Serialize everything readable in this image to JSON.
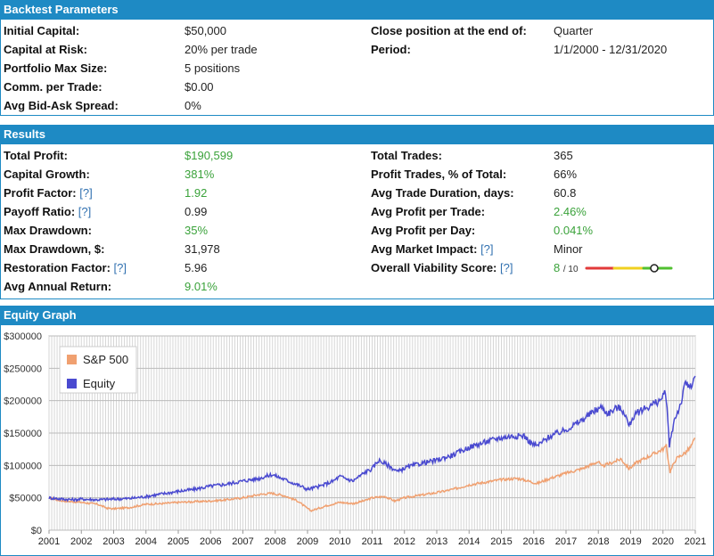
{
  "params": {
    "title": "Backtest Parameters",
    "left": [
      {
        "label": "Initial Capital:",
        "value": "$50,000"
      },
      {
        "label": "Capital at Risk:",
        "value": "20% per trade"
      },
      {
        "label": "Portfolio Max Size:",
        "value": "5 positions"
      },
      {
        "label": "Comm. per Trade:",
        "value": "$0.00"
      },
      {
        "label": "Avg Bid-Ask Spread:",
        "value": "0%"
      }
    ],
    "right": [
      {
        "label": "Close position at the end of:",
        "value": "Quarter"
      },
      {
        "label": "Period:",
        "value": "1/1/2000 - 12/31/2020"
      }
    ]
  },
  "results": {
    "title": "Results",
    "hint_text": "[?]",
    "left": [
      {
        "label": "Total Profit:",
        "value": "$190,599",
        "green": true,
        "hint": false
      },
      {
        "label": "Capital Growth:",
        "value": "381%",
        "green": true,
        "hint": false
      },
      {
        "label": "Profit Factor:",
        "value": "1.92",
        "green": true,
        "hint": true
      },
      {
        "label": "Payoff Ratio:",
        "value": "0.99",
        "green": false,
        "hint": true
      },
      {
        "label": "Max Drawdown:",
        "value": "35%",
        "green": true,
        "hint": false
      },
      {
        "label": "Max Drawdown, $:",
        "value": "31,978",
        "green": false,
        "hint": false
      },
      {
        "label": "Restoration Factor:",
        "value": "5.96",
        "green": false,
        "hint": true
      },
      {
        "label": "Avg Annual Return:",
        "value": "9.01%",
        "green": true,
        "hint": false
      }
    ],
    "right": [
      {
        "label": "Total Trades:",
        "value": "365",
        "green": false,
        "hint": false
      },
      {
        "label": "Profit Trades, % of Total:",
        "value": "66%",
        "green": false,
        "hint": false
      },
      {
        "label": "Avg Trade Duration, days:",
        "value": "60.8",
        "green": false,
        "hint": false
      },
      {
        "label": "Avg Profit per Trade:",
        "value": "2.46%",
        "green": true,
        "hint": false
      },
      {
        "label": "Avg Profit per Day:",
        "value": "0.041%",
        "green": true,
        "hint": false
      },
      {
        "label": "Avg Market Impact:",
        "value": "Minor",
        "green": false,
        "hint": true
      }
    ],
    "viability": {
      "label": "Overall Viability Score:",
      "score": "8",
      "outof": "/ 10",
      "level": 0.8
    }
  },
  "equity": {
    "title": "Equity Graph"
  },
  "colors": {
    "header_blue": "#1e8ac4",
    "green_text": "#3aa23a",
    "equity_line": "#4a4ad0",
    "sp500_line": "#f0a070"
  },
  "chart_data": {
    "type": "line",
    "title": "",
    "xlabel": "",
    "ylabel": "",
    "ylim": [
      0,
      300000
    ],
    "xlim": [
      2001,
      2021
    ],
    "yticks": [
      "$0",
      "$50000",
      "$100000",
      "$150000",
      "$200000",
      "$250000",
      "$300000"
    ],
    "xticks": [
      "2001",
      "2002",
      "2003",
      "2004",
      "2005",
      "2006",
      "2007",
      "2008",
      "2009",
      "2010",
      "2011",
      "2012",
      "2013",
      "2014",
      "2015",
      "2016",
      "2017",
      "2018",
      "2019",
      "2020",
      "2021"
    ],
    "legend": "top-left",
    "series": [
      {
        "name": "S&P 500",
        "color": "#f0a070",
        "points": [
          [
            2001,
            50000
          ],
          [
            2001.3,
            46000
          ],
          [
            2001.7,
            44000
          ],
          [
            2002,
            43000
          ],
          [
            2002.5,
            40000
          ],
          [
            2002.8,
            34000
          ],
          [
            2003,
            33000
          ],
          [
            2003.5,
            35000
          ],
          [
            2004,
            40000
          ],
          [
            2004.5,
            41000
          ],
          [
            2005,
            43000
          ],
          [
            2005.5,
            44000
          ],
          [
            2006,
            45000
          ],
          [
            2006.5,
            47000
          ],
          [
            2007,
            50000
          ],
          [
            2007.5,
            55000
          ],
          [
            2007.9,
            57000
          ],
          [
            2008.3,
            53000
          ],
          [
            2008.7,
            45000
          ],
          [
            2008.9,
            37000
          ],
          [
            2009.1,
            30000
          ],
          [
            2009.3,
            33000
          ],
          [
            2009.6,
            38000
          ],
          [
            2010,
            43000
          ],
          [
            2010.4,
            41000
          ],
          [
            2010.8,
            46000
          ],
          [
            2011,
            50000
          ],
          [
            2011.4,
            52000
          ],
          [
            2011.7,
            45000
          ],
          [
            2012,
            50000
          ],
          [
            2012.5,
            54000
          ],
          [
            2013,
            58000
          ],
          [
            2013.5,
            63000
          ],
          [
            2014,
            70000
          ],
          [
            2014.5,
            74000
          ],
          [
            2015,
            78000
          ],
          [
            2015.5,
            80000
          ],
          [
            2015.9,
            75000
          ],
          [
            2016.1,
            72000
          ],
          [
            2016.5,
            80000
          ],
          [
            2017,
            88000
          ],
          [
            2017.5,
            95000
          ],
          [
            2018,
            106000
          ],
          [
            2018.1,
            98000
          ],
          [
            2018.7,
            110000
          ],
          [
            2018.95,
            95000
          ],
          [
            2019.2,
            105000
          ],
          [
            2019.6,
            115000
          ],
          [
            2020,
            125000
          ],
          [
            2020.1,
            130000
          ],
          [
            2020.22,
            90000
          ],
          [
            2020.4,
            110000
          ],
          [
            2020.7,
            120000
          ],
          [
            2020.85,
            128000
          ],
          [
            2021,
            142000
          ]
        ]
      },
      {
        "name": "Equity",
        "color": "#4a4ad0",
        "points": [
          [
            2001,
            50000
          ],
          [
            2001.4,
            48000
          ],
          [
            2001.8,
            47000
          ],
          [
            2002,
            48000
          ],
          [
            2002.5,
            47000
          ],
          [
            2003,
            48000
          ],
          [
            2003.5,
            49000
          ],
          [
            2004,
            52000
          ],
          [
            2004.5,
            56000
          ],
          [
            2005,
            60000
          ],
          [
            2005.5,
            63000
          ],
          [
            2006,
            68000
          ],
          [
            2006.5,
            71000
          ],
          [
            2007,
            76000
          ],
          [
            2007.5,
            80000
          ],
          [
            2007.9,
            86000
          ],
          [
            2008.3,
            78000
          ],
          [
            2008.7,
            70000
          ],
          [
            2009,
            63000
          ],
          [
            2009.4,
            68000
          ],
          [
            2009.8,
            76000
          ],
          [
            2010,
            83000
          ],
          [
            2010.4,
            76000
          ],
          [
            2010.8,
            90000
          ],
          [
            2011,
            95000
          ],
          [
            2011.2,
            108000
          ],
          [
            2011.5,
            100000
          ],
          [
            2011.8,
            90000
          ],
          [
            2012,
            96000
          ],
          [
            2012.5,
            103000
          ],
          [
            2013,
            108000
          ],
          [
            2013.5,
            116000
          ],
          [
            2014,
            128000
          ],
          [
            2014.5,
            136000
          ],
          [
            2014.9,
            142000
          ],
          [
            2015.3,
            145000
          ],
          [
            2015.7,
            146000
          ],
          [
            2015.9,
            135000
          ],
          [
            2016.1,
            130000
          ],
          [
            2016.5,
            145000
          ],
          [
            2017,
            155000
          ],
          [
            2017.5,
            170000
          ],
          [
            2017.9,
            185000
          ],
          [
            2018.1,
            190000
          ],
          [
            2018.3,
            180000
          ],
          [
            2018.6,
            190000
          ],
          [
            2018.8,
            183000
          ],
          [
            2018.95,
            160000
          ],
          [
            2019.05,
            173000
          ],
          [
            2019.3,
            185000
          ],
          [
            2019.6,
            192000
          ],
          [
            2019.9,
            200000
          ],
          [
            2020.05,
            210000
          ],
          [
            2020.1,
            205000
          ],
          [
            2020.2,
            130000
          ],
          [
            2020.35,
            170000
          ],
          [
            2020.55,
            195000
          ],
          [
            2020.7,
            228000
          ],
          [
            2020.85,
            220000
          ],
          [
            2021,
            238000
          ]
        ]
      }
    ]
  }
}
